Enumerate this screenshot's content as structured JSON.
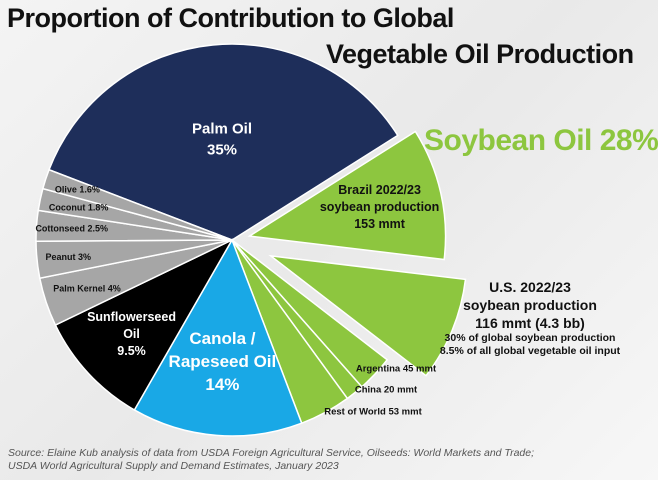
{
  "title": {
    "line1": "Proportion of Contribution to Global",
    "line2": "Vegetable Oil Production"
  },
  "soybean_title": "Soybean Oil 28%",
  "us_annotation": {
    "line1": "U.S. 2022/23",
    "line2": "soybean production",
    "line3": "116 mmt (4.3 bb)",
    "line4": "30% of global soybean production",
    "line5": "8.5% of all global vegetable oil input"
  },
  "source": {
    "line1": "Source: Elaine Kub analysis of data from USDA Foreign Agricultural Service, Oilseeds: World Markets and Trade;",
    "line2": "USDA World Agricultural Supply and Demand Estimates, January 2023"
  },
  "colors": {
    "palm": "#1e2e5a",
    "soy": "#8dc63f",
    "minor": "#a6a6a6",
    "sunflower": "#000000",
    "canola": "#19a8e6"
  },
  "chart_data": {
    "type": "pie",
    "slices": [
      {
        "key": "palm",
        "label": [
          "Palm Oil",
          "35%"
        ],
        "value": 35
      },
      {
        "key": "soy-brazil",
        "label": [
          "Brazil 2022/23",
          "soybean production",
          "153 mmt"
        ],
        "value": 10.8
      },
      {
        "key": "soy-us",
        "label": [],
        "value": 8.5
      },
      {
        "key": "soy-argentina",
        "label": [
          "Argentina 45 mmt"
        ],
        "value": 3.0
      },
      {
        "key": "soy-china",
        "label": [
          "China 20 mmt"
        ],
        "value": 1.5
      },
      {
        "key": "soy-row",
        "label": [
          "Rest of World 53 mmt"
        ],
        "value": 4.2
      },
      {
        "key": "canola",
        "label": [
          "Canola /",
          "Rapeseed Oil",
          "14%"
        ],
        "value": 14
      },
      {
        "key": "sunflower",
        "label": [
          "Sunflowerseed",
          "Oil",
          "9.5%"
        ],
        "value": 9.5
      },
      {
        "key": "palm-kernel",
        "label": [
          "Palm Kernel 4%"
        ],
        "value": 4
      },
      {
        "key": "peanut",
        "label": [
          "Peanut 3%"
        ],
        "value": 3
      },
      {
        "key": "cottonseed",
        "label": [
          "Cottonseed 2.5%"
        ],
        "value": 2.5
      },
      {
        "key": "coconut",
        "label": [
          "Coconut 1.8%"
        ],
        "value": 1.8
      },
      {
        "key": "olive",
        "label": [
          "Olive 1.6%"
        ],
        "value": 1.6
      }
    ]
  }
}
